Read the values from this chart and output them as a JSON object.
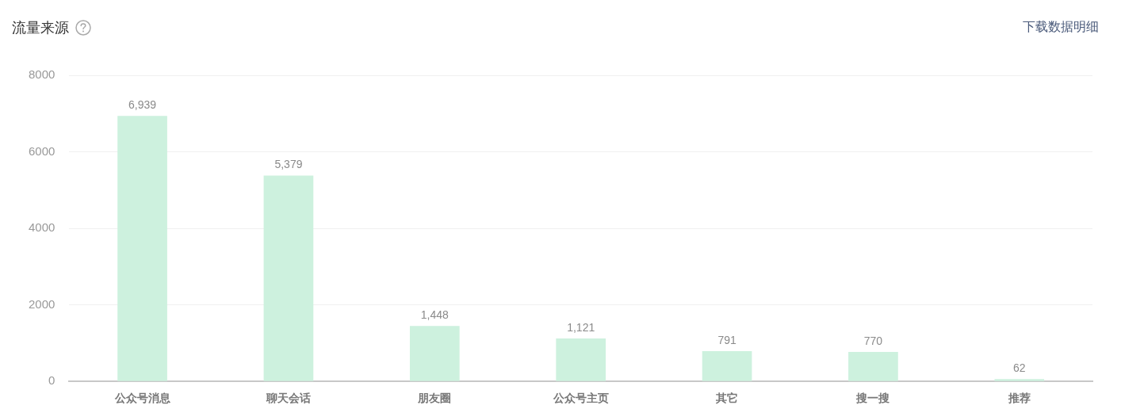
{
  "chart_data": {
    "type": "bar",
    "title": "流量来源",
    "annotations": [
      "下载数据明细"
    ],
    "categories": [
      "公众号消息",
      "聊天会话",
      "朋友圈",
      "公众号主页",
      "其它",
      "搜一搜",
      "推荐"
    ],
    "values": [
      6939,
      5379,
      1448,
      1121,
      791,
      770,
      62
    ],
    "value_labels": [
      "6,939",
      "5,379",
      "1,448",
      "1,121",
      "791",
      "770",
      "62"
    ],
    "color": "#cdf1de",
    "ylim": [
      0,
      8000
    ],
    "yticks": [
      0,
      2000,
      4000,
      6000,
      8000
    ],
    "grid": "y"
  }
}
